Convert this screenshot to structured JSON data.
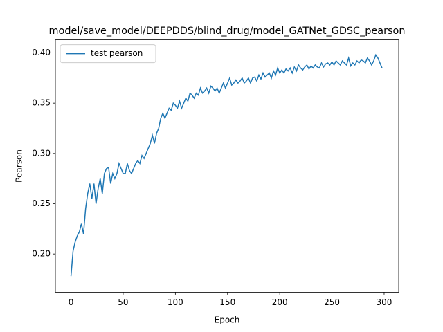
{
  "chart_data": {
    "type": "line",
    "title": "model/save_model/DEEPDDS/blind_drug/model_GATNet_GDSC_pearson",
    "x_label": "Epoch",
    "y_label": "Pearson",
    "legend": "upper left",
    "xlim": [
      -14.95,
      313.95
    ],
    "ylim": [
      0.162,
      0.413
    ],
    "xticks": [
      0,
      50,
      100,
      150,
      200,
      250,
      300
    ],
    "yticks": [
      {
        "value": 0.2,
        "label": "0.20"
      },
      0.25,
      {
        "value": 0.3,
        "label": "0.30"
      },
      0.35,
      {
        "value": 0.4,
        "label": "0.40"
      }
    ],
    "x": [
      0,
      2,
      4,
      6,
      8,
      10,
      12,
      14,
      16,
      18,
      20,
      22,
      24,
      26,
      28,
      30,
      32,
      34,
      36,
      38,
      40,
      42,
      44,
      46,
      48,
      50,
      52,
      54,
      56,
      58,
      60,
      62,
      64,
      66,
      68,
      70,
      72,
      74,
      76,
      78,
      80,
      82,
      84,
      86,
      88,
      90,
      92,
      94,
      96,
      98,
      100,
      102,
      104,
      106,
      108,
      110,
      112,
      114,
      116,
      118,
      120,
      122,
      124,
      126,
      128,
      130,
      132,
      134,
      136,
      138,
      140,
      142,
      144,
      146,
      148,
      150,
      152,
      154,
      156,
      158,
      160,
      162,
      164,
      166,
      168,
      170,
      172,
      174,
      176,
      178,
      180,
      182,
      184,
      186,
      188,
      190,
      192,
      194,
      196,
      198,
      200,
      202,
      204,
      206,
      208,
      210,
      212,
      214,
      216,
      218,
      220,
      222,
      224,
      226,
      228,
      230,
      232,
      234,
      236,
      238,
      240,
      242,
      244,
      246,
      248,
      250,
      252,
      254,
      256,
      258,
      260,
      262,
      264,
      266,
      268,
      270,
      272,
      274,
      276,
      278,
      280,
      282,
      284,
      286,
      288,
      290,
      292,
      294,
      296,
      298
    ],
    "series": [
      {
        "name": "test pearson",
        "color": "#1f77b4",
        "values": [
          0.178,
          0.203,
          0.212,
          0.218,
          0.222,
          0.23,
          0.22,
          0.245,
          0.26,
          0.27,
          0.255,
          0.27,
          0.25,
          0.265,
          0.275,
          0.26,
          0.28,
          0.285,
          0.286,
          0.27,
          0.28,
          0.275,
          0.28,
          0.29,
          0.285,
          0.28,
          0.28,
          0.29,
          0.283,
          0.28,
          0.285,
          0.29,
          0.293,
          0.29,
          0.298,
          0.295,
          0.3,
          0.305,
          0.31,
          0.318,
          0.31,
          0.32,
          0.325,
          0.335,
          0.34,
          0.335,
          0.34,
          0.345,
          0.343,
          0.35,
          0.348,
          0.345,
          0.352,
          0.345,
          0.35,
          0.355,
          0.352,
          0.36,
          0.358,
          0.355,
          0.36,
          0.358,
          0.365,
          0.36,
          0.362,
          0.365,
          0.36,
          0.367,
          0.365,
          0.362,
          0.365,
          0.36,
          0.365,
          0.37,
          0.365,
          0.37,
          0.375,
          0.368,
          0.37,
          0.373,
          0.37,
          0.372,
          0.375,
          0.37,
          0.372,
          0.375,
          0.37,
          0.375,
          0.376,
          0.372,
          0.378,
          0.374,
          0.38,
          0.376,
          0.378,
          0.38,
          0.375,
          0.382,
          0.378,
          0.385,
          0.38,
          0.383,
          0.38,
          0.384,
          0.382,
          0.385,
          0.38,
          0.386,
          0.382,
          0.388,
          0.385,
          0.383,
          0.386,
          0.388,
          0.384,
          0.387,
          0.385,
          0.388,
          0.386,
          0.385,
          0.39,
          0.386,
          0.389,
          0.39,
          0.388,
          0.391,
          0.388,
          0.392,
          0.39,
          0.388,
          0.392,
          0.39,
          0.388,
          0.395,
          0.387,
          0.39,
          0.388,
          0.392,
          0.39,
          0.393,
          0.392,
          0.39,
          0.395,
          0.392,
          0.388,
          0.392,
          0.398,
          0.395,
          0.39,
          0.385
        ]
      }
    ]
  }
}
